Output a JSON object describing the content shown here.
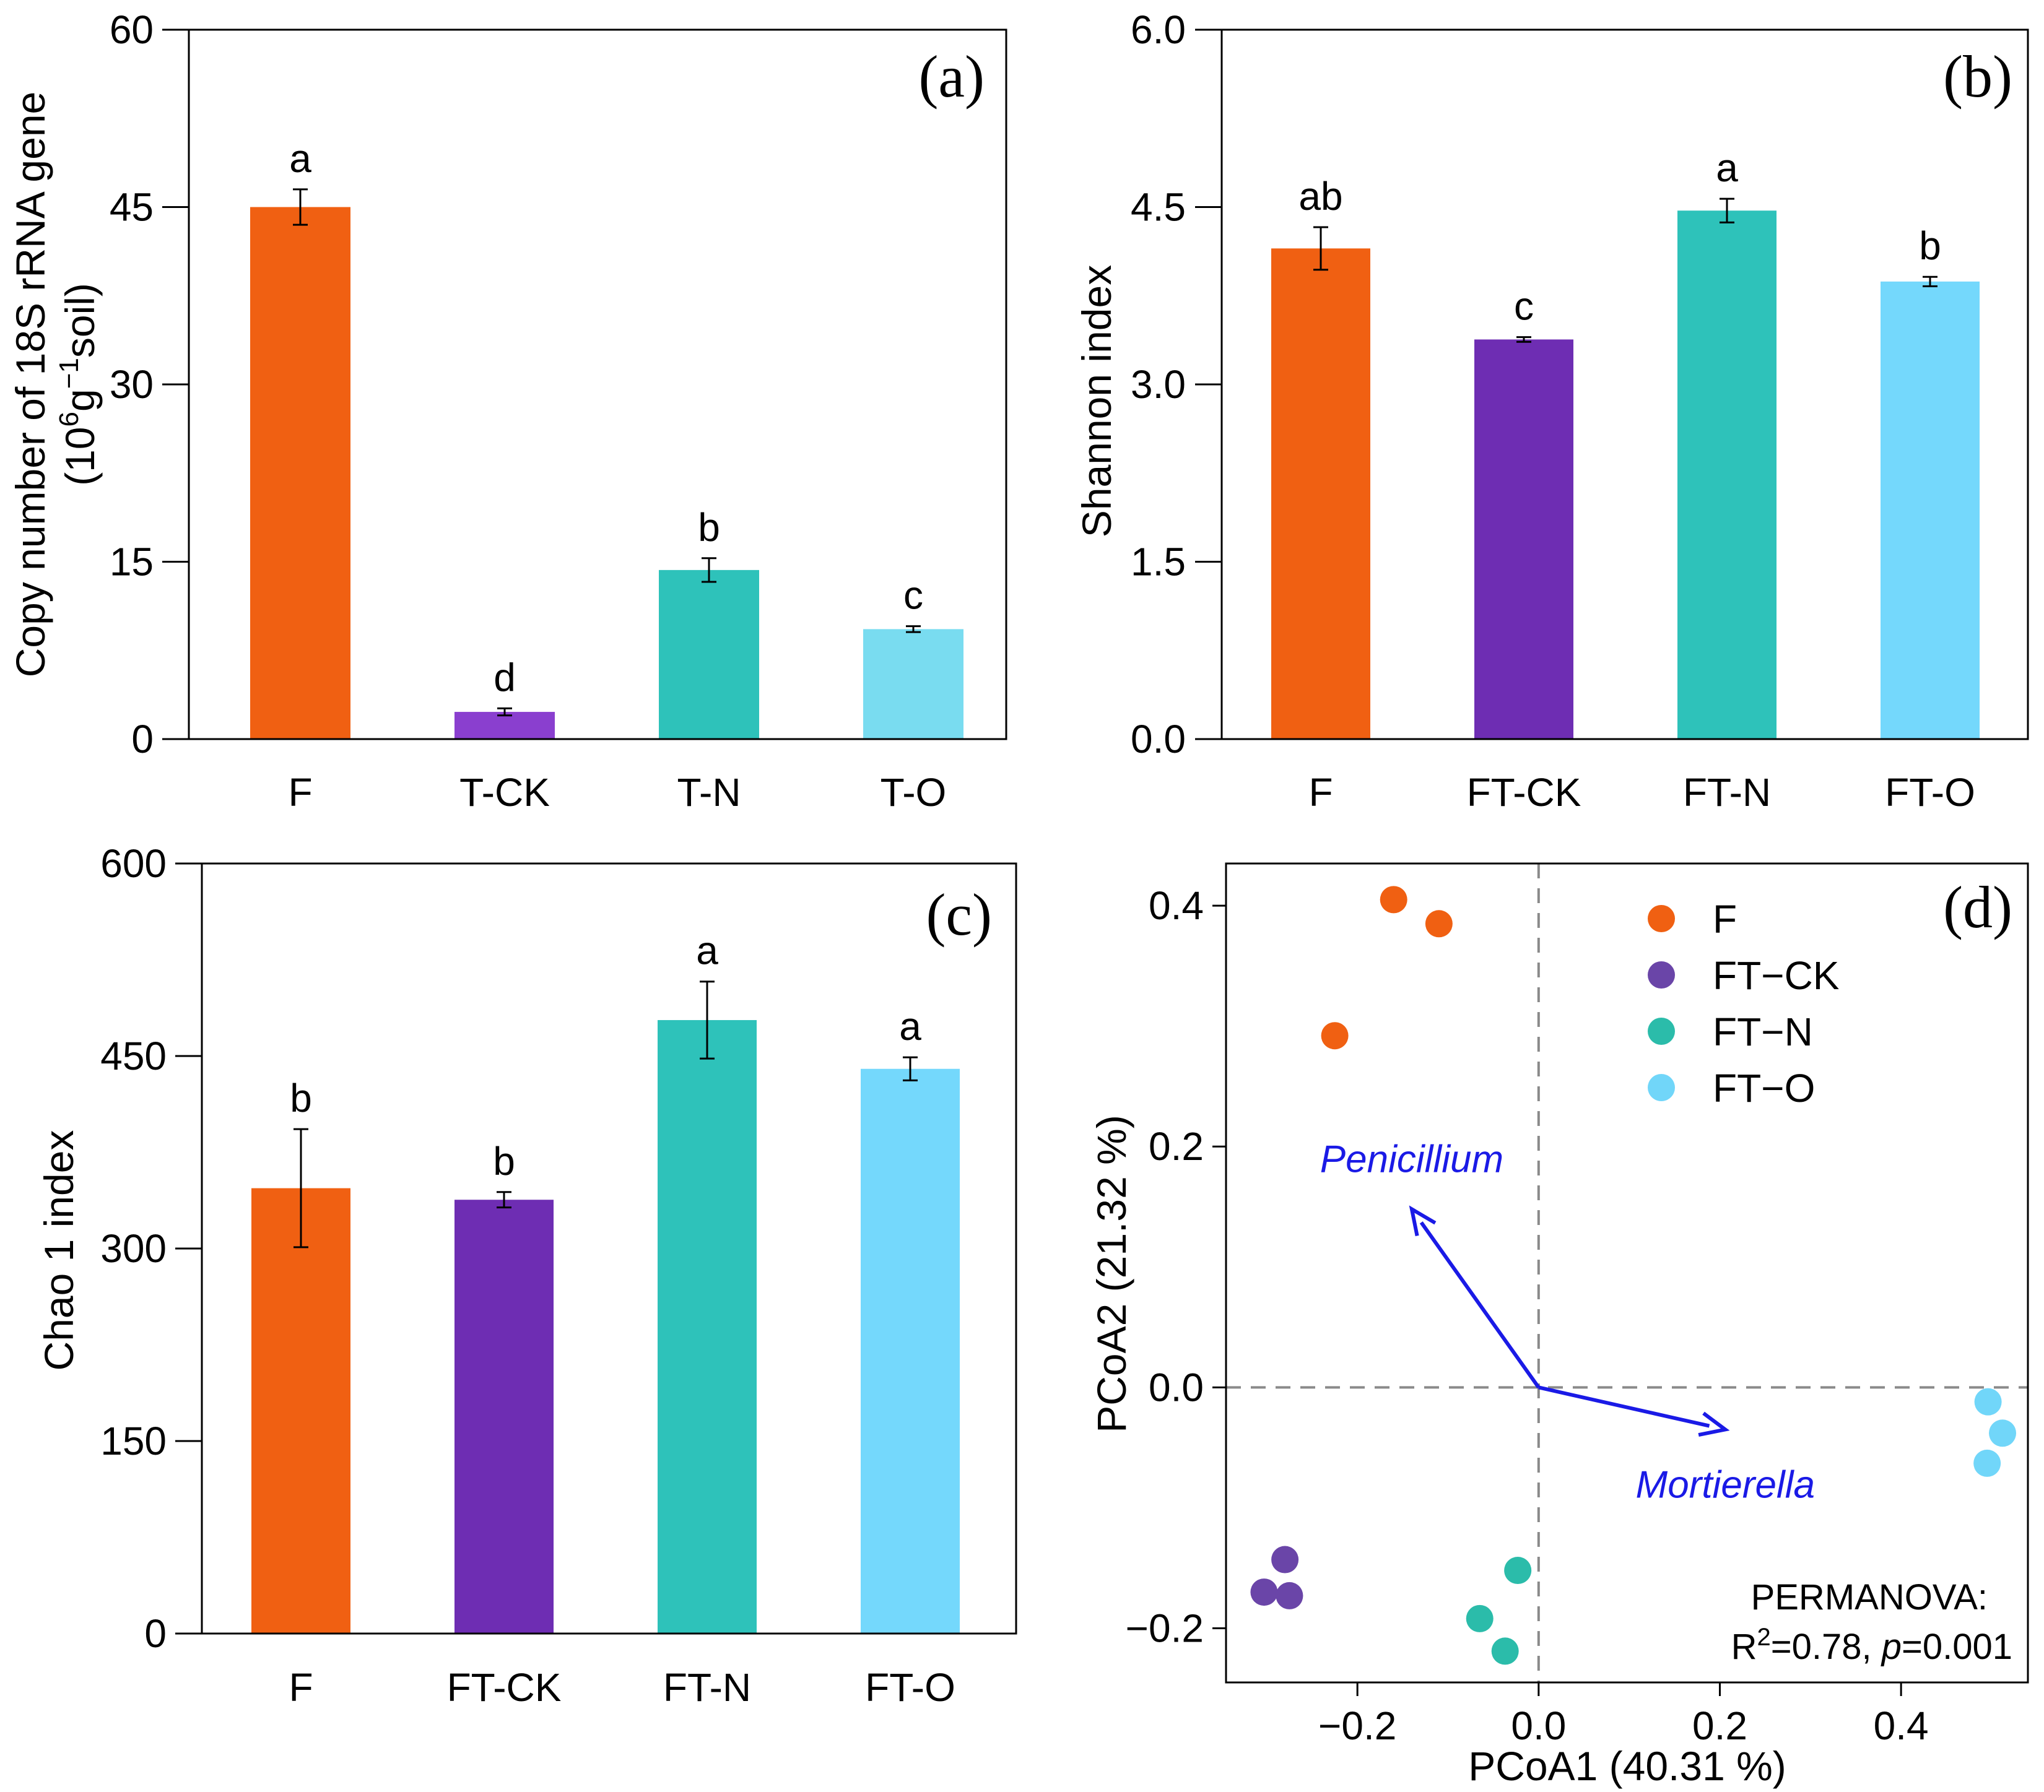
{
  "figure": {
    "panels": [
      "(a)",
      "(b)",
      "(c)",
      "(d)"
    ]
  },
  "chart_data": [
    {
      "id": "a",
      "type": "bar",
      "panel_label": "(a)",
      "ylabel": "Copy number of 18S rRNA gene",
      "ylabel2": "(10",
      "ylabel2_sup": "6",
      "ylabel2_mid": "g",
      "ylabel2_sup2": "−1",
      "ylabel2_end": "soil)",
      "categories": [
        "F",
        "T-CK",
        "T-N",
        "T-O"
      ],
      "values": [
        45.0,
        2.3,
        14.3,
        9.3
      ],
      "errors": [
        1.5,
        0.3,
        1.0,
        0.25
      ],
      "letters": [
        "a",
        "d",
        "b",
        "c"
      ],
      "colors": [
        "#f06012",
        "#8a3fcf",
        "#2ec2ba",
        "#79dcf0"
      ],
      "ylim": [
        0,
        60
      ],
      "yticks": [
        0,
        15,
        30,
        45,
        60
      ],
      "ytick_labels": [
        "0",
        "15",
        "30",
        "45",
        "60"
      ]
    },
    {
      "id": "b",
      "type": "bar",
      "panel_label": "(b)",
      "ylabel": "Shannon  index",
      "categories": [
        "F",
        "FT-CK",
        "FT-N",
        "FT-O"
      ],
      "values": [
        4.15,
        3.38,
        4.47,
        3.87
      ],
      "errors": [
        0.18,
        0.02,
        0.1,
        0.04
      ],
      "letters": [
        "ab",
        "c",
        "a",
        "b"
      ],
      "colors": [
        "#f06012",
        "#6e2db3",
        "#2ec2ba",
        "#74d8fc"
      ],
      "ylim": [
        0,
        6
      ],
      "yticks": [
        0,
        1.5,
        3,
        4.5,
        6
      ],
      "ytick_labels": [
        "0.0",
        "1.5",
        "3.0",
        "4.5",
        "6.0"
      ]
    },
    {
      "id": "c",
      "type": "bar",
      "panel_label": "(c)",
      "ylabel": "Chao 1 index",
      "categories": [
        "F",
        "FT-CK",
        "FT-N",
        "FT-O"
      ],
      "values": [
        347,
        338,
        478,
        440
      ],
      "errors": [
        46,
        6,
        30,
        9
      ],
      "letters": [
        "b",
        "b",
        "a",
        "a"
      ],
      "colors": [
        "#f06012",
        "#6e2db3",
        "#2ec2ba",
        "#74d8fc"
      ],
      "ylim": [
        0,
        600
      ],
      "yticks": [
        0,
        150,
        300,
        450,
        600
      ],
      "ytick_labels": [
        "0",
        "150",
        "300",
        "450",
        "600"
      ]
    },
    {
      "id": "d",
      "type": "scatter",
      "panel_label": "(d)",
      "xlabel": "PCoA1  (40.31 %)",
      "ylabel": "PCoA2   (21.32 %)",
      "xlim": [
        -0.345,
        0.54
      ],
      "ylim": [
        -0.245,
        0.435
      ],
      "xticks": [
        -0.2,
        0.0,
        0.2,
        0.4
      ],
      "xtick_labels": [
        "−0.2",
        "0.0",
        "0.2",
        "0.4"
      ],
      "yticks": [
        -0.2,
        0.0,
        0.2,
        0.4
      ],
      "ytick_labels": [
        "−0.2",
        "0.0",
        "0.2",
        "0.4"
      ],
      "series": [
        {
          "name": "F",
          "color": "#f06012",
          "points": [
            [
              -0.16,
              0.405
            ],
            [
              -0.11,
              0.385
            ],
            [
              -0.225,
              0.292
            ]
          ]
        },
        {
          "name": "FT−CK",
          "color": "#6a45a8",
          "points": [
            [
              -0.28,
              -0.143
            ],
            [
              -0.303,
              -0.17
            ],
            [
              -0.275,
              -0.173
            ]
          ]
        },
        {
          "name": "FT−N",
          "color": "#2bbcaa",
          "points": [
            [
              -0.023,
              -0.152
            ],
            [
              -0.065,
              -0.192
            ],
            [
              -0.037,
              -0.219
            ]
          ]
        },
        {
          "name": "FT−O",
          "color": "#71d6f9",
          "points": [
            [
              0.496,
              -0.012
            ],
            [
              0.512,
              -0.038
            ],
            [
              0.495,
              -0.063
            ]
          ]
        }
      ],
      "arrows": [
        {
          "label": "Penicillium",
          "x": -0.14,
          "y": 0.148
        },
        {
          "label": "Mortierella",
          "x": 0.206,
          "y": -0.035
        }
      ],
      "arrow_color": "#1a1ae6",
      "annotation_line1": "PERMANOVA:",
      "annotation_r2": "R",
      "annotation_r2_sup": "2",
      "annotation_r2_rest": "=0.78, ",
      "annotation_p": "p",
      "annotation_p_rest": "=0.001"
    }
  ]
}
